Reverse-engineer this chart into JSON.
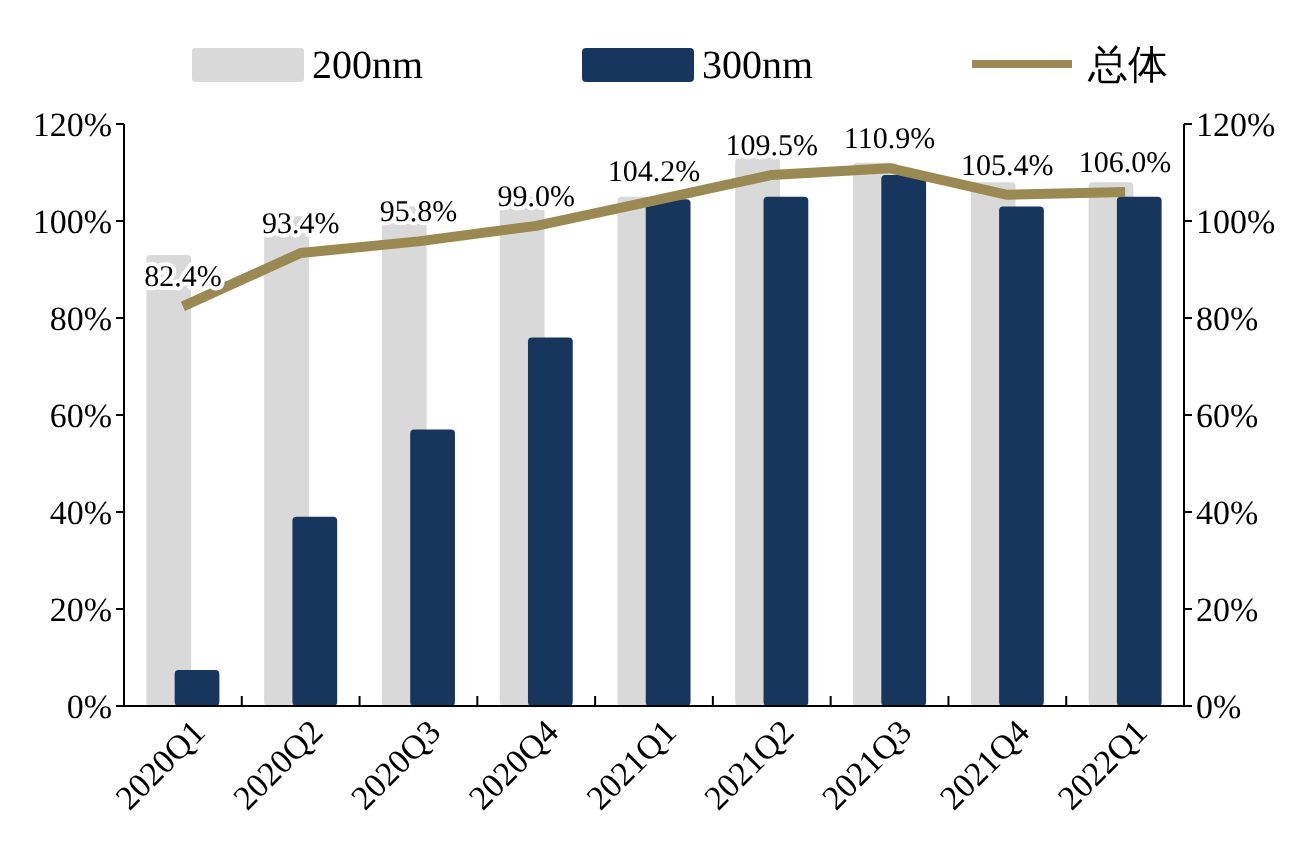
{
  "chart_data": {
    "type": "bar",
    "categories": [
      "2020Q1",
      "2020Q2",
      "2020Q3",
      "2020Q4",
      "2021Q1",
      "2021Q2",
      "2021Q3",
      "2021Q4",
      "2022Q1"
    ],
    "series": [
      {
        "name": "200nm",
        "color": "#d9d9d9",
        "values": [
          93,
          101,
          103,
          105,
          105,
          113,
          112,
          108,
          108
        ]
      },
      {
        "name": "300nm",
        "color": "#17365d",
        "values": [
          7.4,
          39,
          57,
          76,
          104.5,
          105,
          109.5,
          103,
          105
        ]
      },
      {
        "name": "总体",
        "type": "line",
        "color": "#9a8a52",
        "values": [
          82.4,
          93.4,
          95.8,
          99.0,
          104.2,
          109.5,
          110.9,
          105.4,
          106.0
        ],
        "value_labels": [
          "82.4%",
          "93.4%",
          "95.8%",
          "99.0%",
          "104.2%",
          "109.5%",
          "110.9%",
          "105.4%",
          "106.0%"
        ]
      }
    ],
    "ylim": [
      0,
      120
    ],
    "yticks": [
      {
        "value": 0,
        "label": "0%"
      },
      {
        "value": 20,
        "label": "20%"
      },
      {
        "value": 40,
        "label": "40%"
      },
      {
        "value": 60,
        "label": "60%"
      },
      {
        "value": 80,
        "label": "80%"
      },
      {
        "value": 100,
        "label": "100%"
      },
      {
        "value": 120,
        "label": "120%"
      }
    ],
    "y2lim": [
      0,
      120
    ],
    "y2ticks": [
      {
        "value": 0,
        "label": "0%"
      },
      {
        "value": 20,
        "label": "20%"
      },
      {
        "value": 40,
        "label": "40%"
      },
      {
        "value": 60,
        "label": "60%"
      },
      {
        "value": 80,
        "label": "80%"
      },
      {
        "value": 100,
        "label": "100%"
      },
      {
        "value": 120,
        "label": "120%"
      }
    ],
    "legend": "top",
    "grid": false
  }
}
